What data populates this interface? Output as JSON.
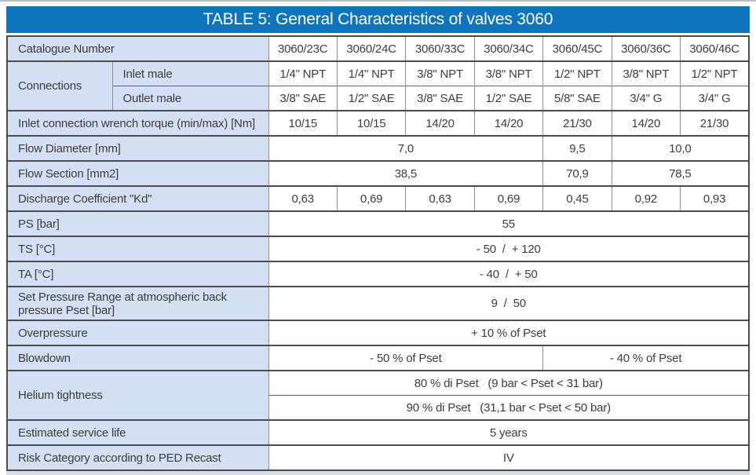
{
  "title": "TABLE 5: General Characteristics of valves 3060",
  "colors": {
    "title_bar_bg": "#0c75bd",
    "title_text": "#ffffff",
    "label_cell_bg": "#d3dff2",
    "border_dark": "#4c4c4c",
    "border_light": "#8e8e8e",
    "body_text": "#3d3d3d"
  },
  "catalogue": {
    "label": "Catalogue Number",
    "values": [
      "3060/23C",
      "3060/24C",
      "3060/33C",
      "3060/34C",
      "3060/45C",
      "3060/36C",
      "3060/46C"
    ]
  },
  "connections": {
    "label": "Connections",
    "inlet_label": "Inlet male",
    "inlet": [
      "1/4\" NPT",
      "1/4\" NPT",
      "3/8\" NPT",
      "3/8\" NPT",
      "1/2\" NPT",
      "3/8\" NPT",
      "1/2\" NPT"
    ],
    "outlet_label": "Outlet male",
    "outlet": [
      "3/8\" SAE",
      "1/2\" SAE",
      "3/8\" SAE",
      "1/2\" SAE",
      "5/8\" SAE",
      "3/4\" G",
      "3/4\" G"
    ]
  },
  "torque": {
    "label": "Inlet connection wrench torque (min/max) [Nm]",
    "values": [
      "10/15",
      "10/15",
      "14/20",
      "14/20",
      "21/30",
      "14/20",
      "21/30"
    ]
  },
  "flow_diameter": {
    "label": "Flow Diameter [mm]",
    "values": [
      "7,0",
      "9,5",
      "10,0"
    ]
  },
  "flow_section": {
    "label": "Flow Section [mm2]",
    "values": [
      "38,5",
      "70,9",
      "78,5"
    ]
  },
  "discharge": {
    "label": "Discharge Coefficient \"Kd\"",
    "values": [
      "0,63",
      "0,69",
      "0,63",
      "0,69",
      "0,45",
      "0,92",
      "0,93"
    ]
  },
  "ps": {
    "label": "PS [bar]",
    "value": "55"
  },
  "ts": {
    "label": "TS [°C]",
    "value": "- 50  /  + 120"
  },
  "ta": {
    "label": "TA [°C]",
    "value": "- 40  /  + 50"
  },
  "set_pressure": {
    "label": "Set Pressure Range at atmospheric back pressure Pset [bar]",
    "value": "9  /  50"
  },
  "overpressure": {
    "label": "Overpressure",
    "value": "+ 10 % of Pset"
  },
  "blowdown": {
    "label": "Blowdown",
    "left": "- 50 % of Pset",
    "right": "- 40 % of Pset"
  },
  "helium": {
    "label": "Helium tightness",
    "row1": "80 % di Pset   (9 bar < Pset < 31 bar)",
    "row2": "90 % di Pset   (31,1 bar < Pset < 50 bar)"
  },
  "service_life": {
    "label": "Estimated service life",
    "value": "5 years"
  },
  "risk": {
    "label": "Risk Category according to PED Recast",
    "value": "IV"
  }
}
